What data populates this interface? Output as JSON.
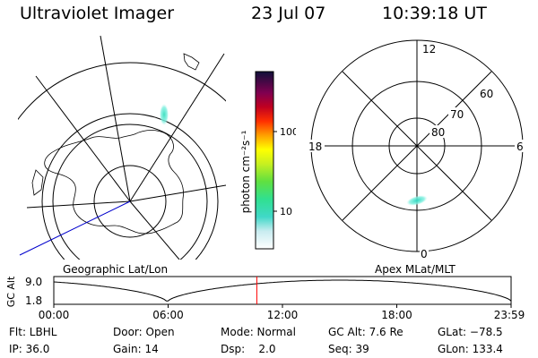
{
  "header": {
    "title": "Ultraviolet Imager",
    "date": "23 Jul 07",
    "time": "10:39:18 UT"
  },
  "colorbar": {
    "label": "photon cm⁻²s⁻¹",
    "ticks": [
      {
        "label": "100",
        "value": 100
      },
      {
        "label": "10",
        "value": 10
      }
    ]
  },
  "geo_panel": {
    "label": "Geographic Lat/Lon"
  },
  "apex_panel": {
    "label": "Apex MLat/MLT",
    "mlt_labels": {
      "top": "12",
      "left": "18",
      "right": "6",
      "bottom": "0"
    },
    "lat_labels": [
      "60",
      "70",
      "80"
    ]
  },
  "altitude_plot": {
    "ylabel": "GC Alt",
    "ymax_label": "9.0",
    "ymin_label": "1.8",
    "ymax": 9.0,
    "ymin": 1.8,
    "x_ticks": [
      "00:00",
      "06:00",
      "12:00",
      "18:00",
      "23:59"
    ],
    "current_time_hours": 10.655,
    "marker_color": "#ff0000"
  },
  "info": {
    "row1": [
      {
        "key": "flt",
        "text": "Flt: LBHL"
      },
      {
        "key": "door",
        "text": "Door: Open"
      },
      {
        "key": "mode",
        "text": "Mode: Normal"
      },
      {
        "key": "gcalt",
        "text": "GC Alt: 7.6 Re"
      },
      {
        "key": "glat",
        "text": "GLat: −78.5"
      }
    ],
    "row2": [
      {
        "key": "ip",
        "text": "IP: 36.0"
      },
      {
        "key": "gain",
        "text": "Gain: 14"
      },
      {
        "key": "dsp",
        "text": "Dsp:    2.0"
      },
      {
        "key": "seq",
        "text": "Seq: 39"
      },
      {
        "key": "glon",
        "text": "GLon: 133.4"
      }
    ]
  }
}
